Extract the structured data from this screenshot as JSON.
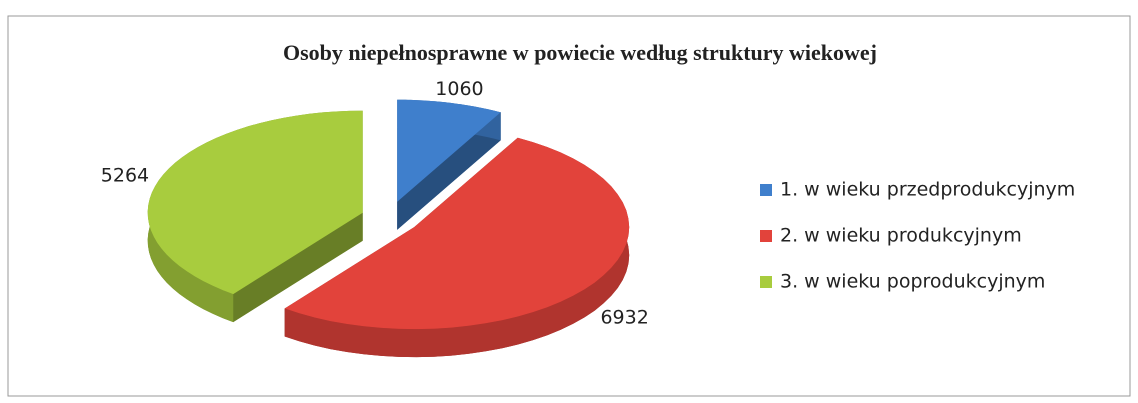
{
  "chart_data": {
    "type": "pie",
    "title": "Osoby niepełnosprawne w powiecie według struktury wiekowej",
    "categories": [
      "1. w wieku przedprodukcyjnym",
      "2. w wieku produkcyjnym",
      "3. w wieku poprodukcyjnym"
    ],
    "values": [
      1060,
      6932,
      5264
    ],
    "colors": [
      "#3f7fcc",
      "#e2433b",
      "#a8cc3e"
    ],
    "legend": "right"
  }
}
